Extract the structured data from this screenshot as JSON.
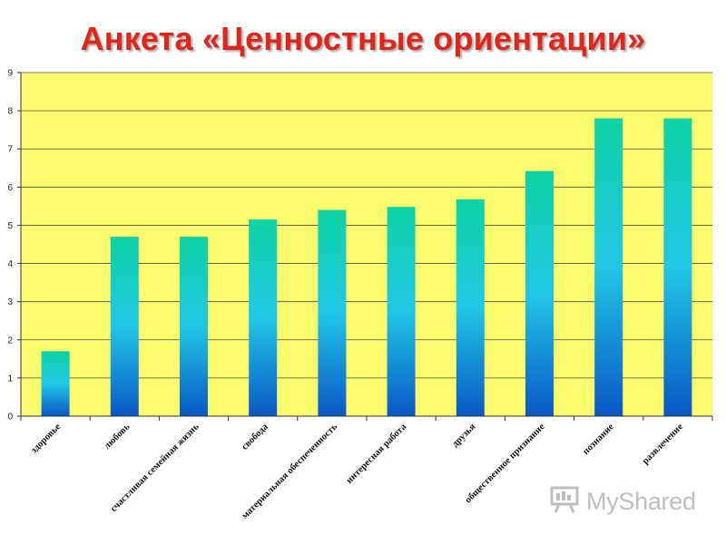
{
  "chart_data": {
    "type": "bar",
    "title": "Анкета «Ценностные ориентации»",
    "categories": [
      "здоровье",
      "любовь",
      "счастливая семейная жизнь",
      "свобода",
      "материальная обеспеченность",
      "интересная работа",
      "друзья",
      "общественное признание",
      "познание",
      "развлечение"
    ],
    "values": [
      1.7,
      4.7,
      4.7,
      5.15,
      5.4,
      5.48,
      5.68,
      6.42,
      7.8,
      7.8
    ],
    "ylim": [
      0,
      9
    ],
    "yticks": [
      "0",
      "1",
      "2",
      "3",
      "4",
      "5",
      "6",
      "7",
      "8",
      "9"
    ],
    "grid": true,
    "legend": "none",
    "colors": {
      "plot_background": "#fbfb6e",
      "bar_top": "#0ed3a4",
      "bar_mid": "#20c7e6",
      "bar_bottom": "#0b57c4",
      "gridline": "#4d4d4d",
      "title": "#e0261b"
    }
  },
  "watermark": {
    "text": "MyShared",
    "icon": "presentation-board-icon"
  }
}
